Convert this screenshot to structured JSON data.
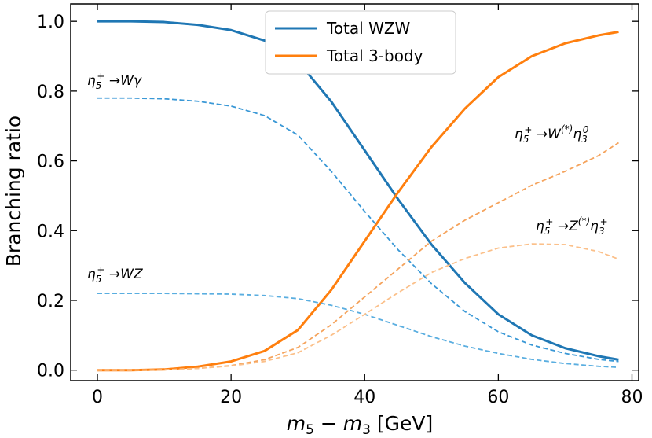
{
  "chart_data": {
    "type": "line",
    "xlabel_main": "m",
    "xlabel_sub1": "5",
    "xlabel_minus": " − ",
    "xlabel_sub2": "3",
    "xlabel_unit": " [GeV]",
    "ylabel": "Branching ratio",
    "xlim": [
      -4,
      81
    ],
    "ylim": [
      -0.03,
      1.05
    ],
    "xticks": [
      0,
      20,
      40,
      60,
      80
    ],
    "yticks": [
      0.0,
      0.2,
      0.4,
      0.6,
      0.8,
      1.0
    ],
    "xtick_labels": [
      "0",
      "20",
      "40",
      "60",
      "80"
    ],
    "ytick_labels": [
      "0.0",
      "0.2",
      "0.4",
      "0.6",
      "0.8",
      "1.0"
    ],
    "grid": false,
    "legend_position": "top-center",
    "series": [
      {
        "name": "Total WZW",
        "color": "#1f77b4",
        "style": "solid",
        "in_legend": true,
        "x": [
          0,
          5,
          10,
          15,
          20,
          25,
          30,
          35,
          40,
          45,
          50,
          55,
          60,
          65,
          70,
          75,
          78
        ],
        "y": [
          1.0,
          1.0,
          0.998,
          0.99,
          0.975,
          0.945,
          0.885,
          0.77,
          0.63,
          0.49,
          0.36,
          0.25,
          0.16,
          0.1,
          0.063,
          0.04,
          0.03
        ]
      },
      {
        "name": "Total 3-body",
        "color": "#ff7f0e",
        "style": "solid",
        "in_legend": true,
        "x": [
          0,
          5,
          10,
          15,
          20,
          25,
          30,
          35,
          40,
          45,
          50,
          55,
          60,
          65,
          70,
          75,
          78
        ],
        "y": [
          0.0,
          0.0,
          0.002,
          0.01,
          0.025,
          0.055,
          0.115,
          0.23,
          0.37,
          0.51,
          0.64,
          0.75,
          0.84,
          0.9,
          0.937,
          0.96,
          0.97
        ]
      },
      {
        "name": "eta5_W_gamma",
        "color": "#3a98d6",
        "style": "dashed",
        "in_legend": false,
        "x": [
          0,
          5,
          10,
          15,
          20,
          25,
          30,
          35,
          40,
          45,
          50,
          55,
          60,
          65,
          70,
          75,
          78
        ],
        "y": [
          0.78,
          0.78,
          0.778,
          0.771,
          0.757,
          0.73,
          0.674,
          0.57,
          0.455,
          0.345,
          0.248,
          0.168,
          0.11,
          0.072,
          0.048,
          0.031,
          0.025
        ]
      },
      {
        "name": "eta5_W_Z",
        "color": "#5aaee0",
        "style": "dashed",
        "in_legend": false,
        "x": [
          0,
          5,
          10,
          15,
          20,
          25,
          30,
          35,
          40,
          45,
          50,
          55,
          60,
          65,
          70,
          75,
          78
        ],
        "y": [
          0.22,
          0.22,
          0.22,
          0.219,
          0.218,
          0.214,
          0.205,
          0.186,
          0.16,
          0.128,
          0.096,
          0.069,
          0.048,
          0.031,
          0.019,
          0.011,
          0.008
        ]
      },
      {
        "name": "eta5_W_eta3_0",
        "color": "#f5a35c",
        "style": "dashed",
        "in_legend": false,
        "x": [
          0,
          5,
          10,
          15,
          20,
          25,
          30,
          35,
          40,
          45,
          50,
          55,
          60,
          65,
          70,
          75,
          78
        ],
        "y": [
          0.0,
          0.0,
          0.001,
          0.005,
          0.013,
          0.03,
          0.065,
          0.13,
          0.21,
          0.29,
          0.37,
          0.43,
          0.48,
          0.53,
          0.57,
          0.615,
          0.652
        ]
      },
      {
        "name": "eta5_Z_eta3_plus",
        "color": "#fbc08a",
        "style": "dashed",
        "in_legend": false,
        "x": [
          0,
          5,
          10,
          15,
          20,
          25,
          30,
          35,
          40,
          45,
          50,
          55,
          60,
          65,
          70,
          75,
          78
        ],
        "y": [
          0.0,
          0.0,
          0.001,
          0.005,
          0.012,
          0.025,
          0.05,
          0.1,
          0.16,
          0.222,
          0.28,
          0.32,
          0.35,
          0.362,
          0.36,
          0.34,
          0.318
        ]
      }
    ],
    "annotations": [
      {
        "id": "wgamma",
        "base": "η",
        "sub": "5",
        "sup": "+",
        "mid": " →Wγ",
        "sub2": "",
        "sup2": ""
      },
      {
        "id": "wz",
        "base": "η",
        "sub": "5",
        "sup": "+",
        "mid": " →WZ",
        "sub2": "",
        "sup2": ""
      },
      {
        "id": "weta",
        "base": "η",
        "sub": "5",
        "sup": "+",
        "mid": " →W",
        "sup_mid": "(*)",
        "tail": "η",
        "sub2": "3",
        "sup2": "0"
      },
      {
        "id": "zeta",
        "base": "η",
        "sub": "5",
        "sup": "+",
        "mid": " →Z",
        "sup_mid": "(*)",
        "tail": "η",
        "sub2": "3",
        "sup2": "+"
      }
    ]
  }
}
